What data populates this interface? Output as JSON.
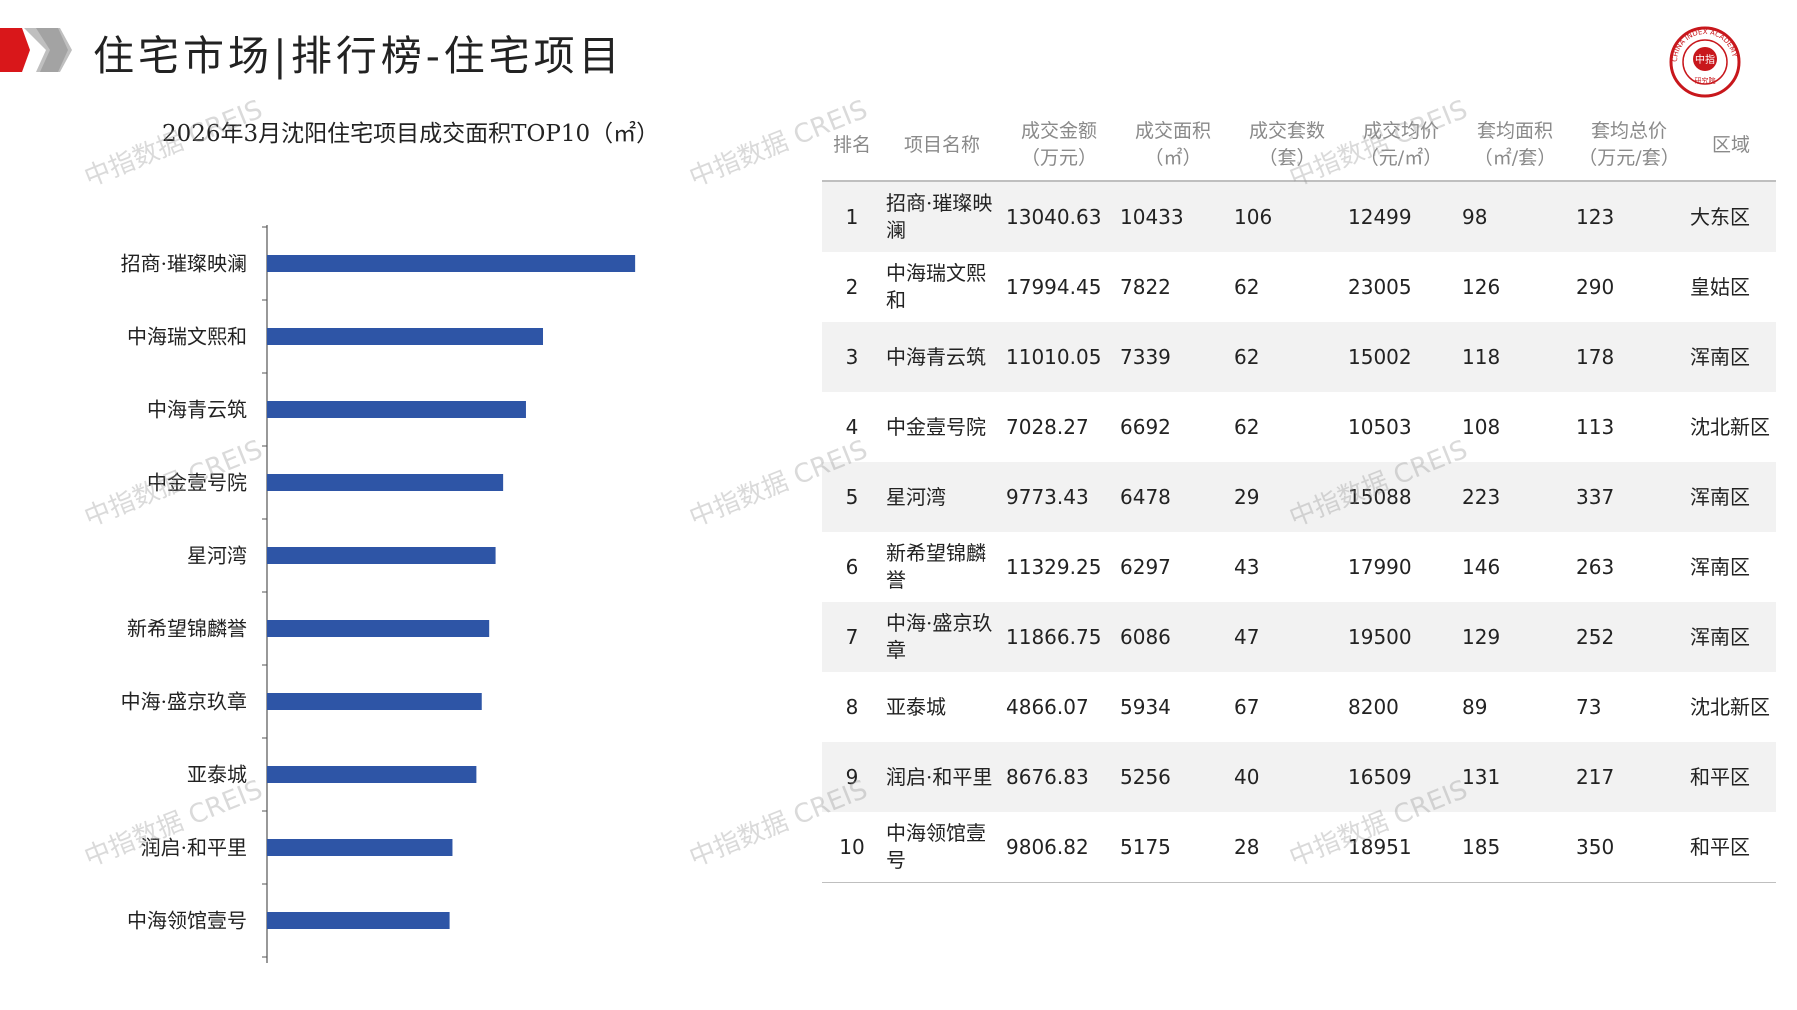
{
  "header": {
    "title": "住宅市场|排行榜-住宅项目",
    "logo_icon": "red-gray-chevron-logo",
    "seal_text": "中指",
    "seal_ring_text": "CHINA INDEX ACADEMY",
    "seal_sub_text": "研究院"
  },
  "colors": {
    "bar": "#2E55A6",
    "accent": "#D9171A",
    "stripe": "#F2F2F2"
  },
  "chart_data": {
    "type": "bar",
    "orientation": "horizontal",
    "title": "2026年3月沈阳住宅项目成交面积TOP10（㎡）",
    "categories": [
      "招商·璀璨映澜",
      "中海瑞文熙和",
      "中海青云筑",
      "中金壹号院",
      "星河湾",
      "新希望锦麟誉",
      "中海·盛京玖章",
      "亚泰城",
      "润启·和平里",
      "中海领馆壹号"
    ],
    "values": [
      10433,
      7822,
      7339,
      6692,
      6478,
      6297,
      6086,
      5934,
      5256,
      5175
    ],
    "xlim": [
      0,
      14000
    ],
    "grid": false,
    "legend": "none"
  },
  "table": {
    "headers": [
      [
        "排名"
      ],
      [
        "项目名称"
      ],
      [
        "成交金额",
        "（万元）"
      ],
      [
        "成交面积",
        "（㎡）"
      ],
      [
        "成交套数",
        "（套）"
      ],
      [
        "成交均价",
        "（元/㎡）"
      ],
      [
        "套均面积",
        "（㎡/套）"
      ],
      [
        "套均总价",
        "（万元/套）"
      ],
      [
        "区域"
      ]
    ],
    "rows": [
      [
        "1",
        "招商·璀璨映澜",
        "13040.63",
        "10433",
        "106",
        "12499",
        "98",
        "123",
        "大东区"
      ],
      [
        "2",
        "中海瑞文熙和",
        "17994.45",
        "7822",
        "62",
        "23005",
        "126",
        "290",
        "皇姑区"
      ],
      [
        "3",
        "中海青云筑",
        "11010.05",
        "7339",
        "62",
        "15002",
        "118",
        "178",
        "浑南区"
      ],
      [
        "4",
        "中金壹号院",
        "7028.27",
        "6692",
        "62",
        "10503",
        "108",
        "113",
        "沈北新区"
      ],
      [
        "5",
        "星河湾",
        "9773.43",
        "6478",
        "29",
        "15088",
        "223",
        "337",
        "浑南区"
      ],
      [
        "6",
        "新希望锦麟誉",
        "11329.25",
        "6297",
        "43",
        "17990",
        "146",
        "263",
        "浑南区"
      ],
      [
        "7",
        "中海·盛京玖章",
        "11866.75",
        "6086",
        "47",
        "19500",
        "129",
        "252",
        "浑南区"
      ],
      [
        "8",
        "亚泰城",
        "4866.07",
        "5934",
        "67",
        "8200",
        "89",
        "73",
        "沈北新区"
      ],
      [
        "9",
        "润启·和平里",
        "8676.83",
        "5256",
        "40",
        "16509",
        "131",
        "217",
        "和平区"
      ],
      [
        "10",
        "中海领馆壹号",
        "9806.82",
        "5175",
        "28",
        "18951",
        "185",
        "350",
        "和平区"
      ]
    ]
  },
  "watermark": "中指数据 CREIS"
}
